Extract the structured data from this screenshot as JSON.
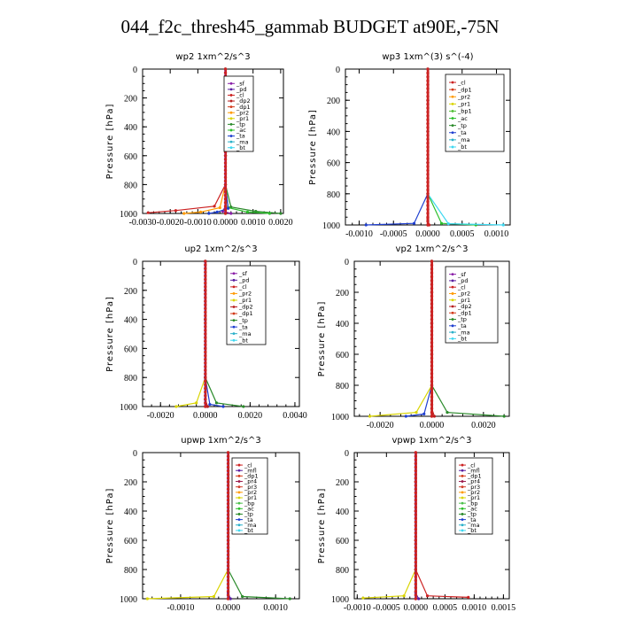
{
  "page": {
    "title": "044_f2c_thresh45_gammab  BUDGET at90E,-75N"
  },
  "colors": {
    "sf": "#8a1fa8",
    "pd": "#5a1fa0",
    "cl": "#cc2222",
    "dp2": "#b81e1e",
    "dp1": "#d33a1a",
    "pr2": "#ff9a00",
    "pr1": "#d9d400",
    "tp": "#2a8a2a",
    "ac": "#2bbf2b",
    "ta": "#1f3fd0",
    "ma": "#2ab0c9",
    "bt": "#3fd8f0",
    "bp1": "#55c03a",
    "mfl": "#5a1fa0",
    "pr4": "#9b1a4a",
    "pr3": "#d13e2a",
    "bp": "#4bc04b",
    "frame": "#000000"
  },
  "chart_data": [
    {
      "type": "line",
      "title": "wp2   1xm^2/s^3",
      "ylabel": "Pressure [hPa]",
      "xlim": [
        -0.003,
        0.0021
      ],
      "ylim": [
        1000,
        0
      ],
      "xticks": [
        -0.003,
        -0.002,
        -0.001,
        0.0,
        0.001,
        0.002
      ],
      "xtick_labels": [
        "-0.0030",
        "-0.0020",
        "-0.0010",
        "0.0000",
        "0.0010",
        "0.0020"
      ],
      "yticks": [
        0,
        200,
        400,
        600,
        800,
        1000
      ],
      "ytick_labels": [
        "0",
        "200",
        "400",
        "600",
        "800",
        "1000"
      ],
      "legend": [
        "_sf",
        "_pd",
        "_cl",
        "_dp2",
        "_dp1",
        "_pr2",
        "_pr1",
        "_tp",
        "_ac",
        "_ta",
        "_ma",
        "_bt"
      ],
      "series": [
        {
          "name": "_sf",
          "x": [
            0,
            0,
            0,
            0,
            0,
            0,
            -0.0001,
            0.0002
          ],
          "y": [
            0,
            200,
            400,
            600,
            800,
            950,
            985,
            1000
          ]
        },
        {
          "name": "_cl",
          "x": [
            0,
            0,
            0,
            0,
            0,
            -0.0004,
            -0.0018,
            -0.0028
          ],
          "y": [
            0,
            200,
            400,
            600,
            800,
            950,
            980,
            995
          ]
        },
        {
          "name": "_tp",
          "x": [
            0,
            0,
            0,
            0,
            0,
            0.0002,
            0.0011,
            0.002
          ],
          "y": [
            0,
            200,
            400,
            600,
            800,
            955,
            985,
            1000
          ]
        },
        {
          "name": "_ac",
          "x": [
            0,
            0,
            0,
            0,
            0,
            0.0001,
            0.0008,
            0.0016
          ],
          "y": [
            0,
            200,
            400,
            600,
            800,
            960,
            990,
            1000
          ]
        },
        {
          "name": "_pr2",
          "x": [
            0,
            0,
            0,
            0,
            0,
            -0.0002,
            -0.0009,
            -0.0015
          ],
          "y": [
            0,
            200,
            400,
            600,
            800,
            960,
            990,
            1000
          ]
        },
        {
          "name": "_ta",
          "x": [
            0,
            0,
            0,
            0,
            0,
            0.0001,
            -0.0003,
            -0.0006
          ],
          "y": [
            0,
            200,
            400,
            600,
            800,
            965,
            990,
            1000
          ]
        }
      ]
    },
    {
      "type": "line",
      "title": "wp3   1xm^(3) s^(-4)",
      "ylabel": "Pressure [hPa]",
      "xlim": [
        -0.0012,
        0.0012
      ],
      "ylim": [
        1000,
        0
      ],
      "xticks": [
        -0.001,
        -0.0005,
        0.0,
        0.0005,
        0.001
      ],
      "xtick_labels": [
        "-0.0010",
        "-0.0005",
        "0.0000",
        "0.0005",
        "0.0010"
      ],
      "yticks": [
        0,
        200,
        400,
        600,
        800,
        1000
      ],
      "ytick_labels": [
        "0",
        "200",
        "400",
        "600",
        "800",
        "1000"
      ],
      "legend": [
        "_cl",
        "_dp1",
        "_pr2",
        "_pr1",
        "_bp1",
        "_ac",
        "_tp",
        "_ta",
        "_ma",
        "_bt"
      ],
      "series": [
        {
          "name": "_cl",
          "x": [
            0,
            0,
            0,
            0,
            0,
            0,
            2e-05
          ],
          "y": [
            0,
            200,
            400,
            600,
            800,
            960,
            1000
          ]
        },
        {
          "name": "_ac",
          "x": [
            0,
            0,
            0,
            0,
            0,
            0.0002,
            0.0007
          ],
          "y": [
            0,
            200,
            400,
            600,
            800,
            990,
            1000
          ]
        },
        {
          "name": "_ta",
          "x": [
            0,
            0,
            0,
            0,
            0,
            -0.0002,
            -0.0009
          ],
          "y": [
            0,
            200,
            400,
            600,
            800,
            990,
            1000
          ]
        },
        {
          "name": "_bt",
          "x": [
            0,
            0,
            0,
            0,
            0,
            0.0003,
            0.0011
          ],
          "y": [
            0,
            200,
            400,
            600,
            800,
            992,
            1000
          ]
        }
      ]
    },
    {
      "type": "line",
      "title": "up2   1xm^2/s^3",
      "ylabel": "Pressure [hPa]",
      "xlim": [
        -0.0028,
        0.0042
      ],
      "ylim": [
        1000,
        0
      ],
      "xticks": [
        -0.002,
        0.0,
        0.002,
        0.004
      ],
      "xtick_labels": [
        "-0.0020",
        "0.0000",
        "0.0020",
        "0.0040"
      ],
      "yticks": [
        0,
        200,
        400,
        600,
        800,
        1000
      ],
      "ytick_labels": [
        "0",
        "200",
        "400",
        "600",
        "800",
        "1000"
      ],
      "legend": [
        "_sf",
        "_pd",
        "_cl",
        "_pr2",
        "_pr1",
        "_dp2",
        "_dp1",
        "_tp",
        "_ta",
        "_ma",
        "_bt"
      ],
      "series": [
        {
          "name": "_pd",
          "x": [
            0,
            0,
            0,
            0,
            0,
            0,
            0.0001
          ],
          "y": [
            0,
            200,
            400,
            600,
            800,
            950,
            1000
          ]
        },
        {
          "name": "_dp2",
          "x": [
            0,
            0,
            0,
            0,
            0,
            0,
            0.0001
          ],
          "y": [
            0,
            200,
            400,
            600,
            800,
            950,
            1000
          ]
        },
        {
          "name": "_pr1",
          "x": [
            0,
            0,
            0,
            0,
            0,
            -0.0004,
            -0.0013
          ],
          "y": [
            0,
            200,
            400,
            600,
            800,
            975,
            1000
          ]
        },
        {
          "name": "_tp",
          "x": [
            0,
            0,
            0,
            0,
            0,
            0.0005,
            0.0017
          ],
          "y": [
            0,
            200,
            400,
            600,
            800,
            975,
            1000
          ]
        },
        {
          "name": "_ta",
          "x": [
            0,
            0,
            0,
            0,
            0,
            0.0002,
            0.0008
          ],
          "y": [
            0,
            200,
            400,
            600,
            800,
            985,
            1000
          ]
        }
      ]
    },
    {
      "type": "line",
      "title": "vp2   1xm^2/s^3",
      "ylabel": "Pressure [hPa]",
      "xlim": [
        -0.003,
        0.003
      ],
      "ylim": [
        1000,
        0
      ],
      "xticks": [
        -0.002,
        0.0,
        0.002
      ],
      "xtick_labels": [
        "-0.0020",
        "0.0000",
        "0.0020"
      ],
      "yticks": [
        0,
        200,
        400,
        600,
        800,
        1000
      ],
      "ytick_labels": [
        "0",
        "200",
        "400",
        "600",
        "800",
        "1000"
      ],
      "legend": [
        "_sf",
        "_pd",
        "_cl",
        "_pr2",
        "_pr1",
        "_dp2",
        "_dp1",
        "_tp",
        "_ta",
        "_ma",
        "_bt"
      ],
      "series": [
        {
          "name": "_dp2",
          "x": [
            0,
            0,
            0,
            0,
            0,
            0,
            0.0001
          ],
          "y": [
            0,
            200,
            400,
            600,
            800,
            950,
            1000
          ]
        },
        {
          "name": "_pr1",
          "x": [
            0,
            0,
            0,
            0,
            0,
            -0.0006,
            -0.0024
          ],
          "y": [
            0,
            200,
            400,
            600,
            800,
            975,
            1000
          ]
        },
        {
          "name": "_tp",
          "x": [
            0,
            0,
            0,
            0,
            0,
            0.0006,
            0.0028
          ],
          "y": [
            0,
            200,
            400,
            600,
            800,
            975,
            1000
          ]
        },
        {
          "name": "_ta",
          "x": [
            0,
            0,
            0,
            0,
            0,
            -0.0003,
            -0.001
          ],
          "y": [
            0,
            200,
            400,
            600,
            800,
            985,
            1000
          ]
        }
      ]
    },
    {
      "type": "line",
      "title": "upwp   1xm^2/s^3",
      "ylabel": "Pressure [hPa]",
      "xlim": [
        -0.0018,
        0.0015
      ],
      "ylim": [
        1000,
        0
      ],
      "xticks": [
        -0.001,
        0.0,
        0.001
      ],
      "xtick_labels": [
        "-0.0010",
        "0.0000",
        "0.0010"
      ],
      "yticks": [
        0,
        200,
        400,
        600,
        800,
        1000
      ],
      "ytick_labels": [
        "0",
        "200",
        "400",
        "600",
        "800",
        "1000"
      ],
      "legend": [
        "_cl",
        "_mfl",
        "_dp1",
        "_pr4",
        "_pr3",
        "_pr2",
        "_pr1",
        "_bp",
        "_ac",
        "_tp",
        "_ta",
        "_ma",
        "_bt"
      ],
      "series": [
        {
          "name": "_mfl",
          "x": [
            0,
            0,
            0,
            0,
            0,
            0,
            5e-05
          ],
          "y": [
            0,
            200,
            400,
            600,
            800,
            960,
            1000
          ]
        },
        {
          "name": "_pr1",
          "x": [
            0,
            0,
            0,
            0,
            0,
            -0.0003,
            -0.0017
          ],
          "y": [
            0,
            200,
            400,
            600,
            800,
            985,
            1000
          ]
        },
        {
          "name": "_tp",
          "x": [
            0,
            0,
            0,
            0,
            0,
            0.0003,
            0.0013
          ],
          "y": [
            0,
            200,
            400,
            600,
            800,
            985,
            1000
          ]
        }
      ]
    },
    {
      "type": "line",
      "title": "vpwp   1xm^2/s^3",
      "ylabel": "Pressure [hPa]",
      "xlim": [
        -0.00105,
        0.0016
      ],
      "ylim": [
        1000,
        0
      ],
      "xticks": [
        -0.001,
        -0.0005,
        0.0,
        0.0005,
        0.001,
        0.0015
      ],
      "xtick_labels": [
        "-0.0010",
        "-0.0005",
        "0.0000",
        "0.0005",
        "0.0010",
        "0.0015"
      ],
      "yticks": [
        0,
        200,
        400,
        600,
        800,
        1000
      ],
      "ytick_labels": [
        "0",
        "200",
        "400",
        "600",
        "800",
        "1000"
      ],
      "legend": [
        "_cl",
        "_mfl",
        "_dp1",
        "_pr4",
        "_pr3",
        "_pr2",
        "_pr1",
        "_bp",
        "_ac",
        "_tp",
        "_ta",
        "_ma",
        "_bt"
      ],
      "series": [
        {
          "name": "_mfl",
          "x": [
            0,
            0,
            0,
            0,
            0,
            0,
            5e-05
          ],
          "y": [
            0,
            200,
            400,
            600,
            800,
            960,
            1000
          ]
        },
        {
          "name": "_pr1",
          "x": [
            0,
            0,
            0,
            0,
            0,
            -0.0002,
            -0.0009
          ],
          "y": [
            0,
            200,
            400,
            600,
            800,
            980,
            995
          ]
        },
        {
          "name": "_cl",
          "x": [
            0,
            0,
            0,
            0,
            0,
            0.0002,
            0.0009
          ],
          "y": [
            0,
            200,
            400,
            600,
            800,
            980,
            990
          ]
        }
      ]
    }
  ]
}
